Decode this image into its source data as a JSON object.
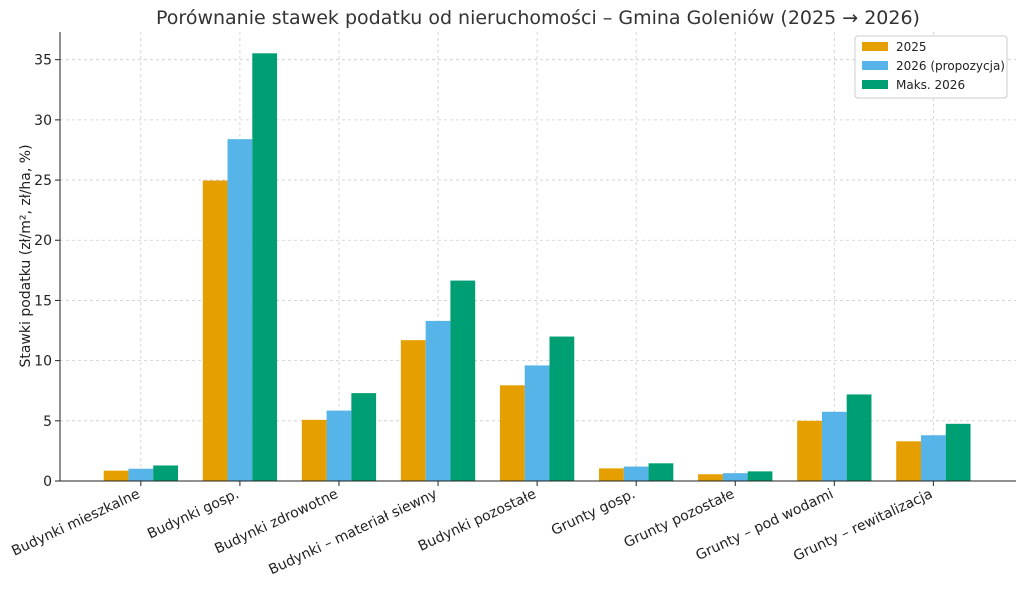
{
  "chart_data": {
    "type": "bar",
    "title": "Porównanie stawek podatku od nieruchomości – Gmina Goleniów (2025 → 2026)",
    "xlabel": "",
    "ylabel": "Stawki podatku (zł/m², zł/ha, %)",
    "ylim": [
      0,
      37.3
    ],
    "yticks": [
      0,
      5,
      10,
      15,
      20,
      25,
      30,
      35
    ],
    "grid": true,
    "legend_position": "top-right",
    "categories": [
      "Budynki mieszkalne",
      "Budynki gosp.",
      "Budynki zdrowotne",
      "Budynki – materiał siewny",
      "Budynki pozostałe",
      "Grunty gosp.",
      "Grunty pozostałe",
      "Grunty – pod wodami",
      "Grunty – rewitalizacja"
    ],
    "series": [
      {
        "name": "2025",
        "color": "#E69F00",
        "values": [
          0.86,
          24.96,
          5.08,
          11.7,
          7.95,
          1.05,
          0.56,
          5.0,
          3.3
        ]
      },
      {
        "name": "2026 (propozycja)",
        "color": "#56B4E9",
        "values": [
          1.02,
          28.4,
          5.85,
          13.3,
          9.6,
          1.2,
          0.65,
          5.75,
          3.8
        ]
      },
      {
        "name": "Maks. 2026",
        "color": "#009E73",
        "values": [
          1.29,
          35.53,
          7.3,
          16.65,
          12.0,
          1.47,
          0.8,
          7.19,
          4.75
        ]
      }
    ]
  }
}
